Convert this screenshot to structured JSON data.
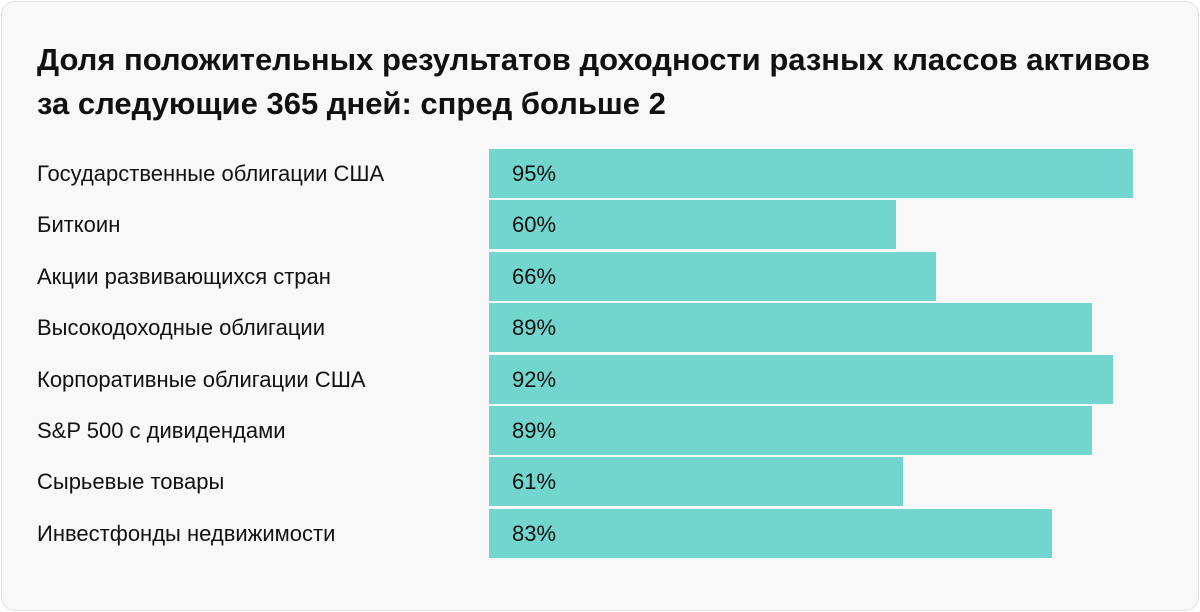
{
  "chart_data": {
    "type": "bar",
    "orientation": "horizontal",
    "title": "Доля положительных результатов доходности разных классов активов за следующие 365 дней: спред больше 2",
    "categories": [
      "Государственные облигации США",
      "Биткоин",
      "Акции развивающихся стран",
      "Высокодоходные облигации",
      "Корпоративные облигации США",
      "S&P 500 с дивидендами",
      "Сырьевые товары",
      "Инвестфонды недвижимости"
    ],
    "values": [
      95,
      60,
      66,
      89,
      92,
      89,
      61,
      83
    ],
    "value_labels": [
      "95%",
      "60%",
      "66%",
      "89%",
      "92%",
      "89%",
      "61%",
      "83%"
    ],
    "xlim": [
      0,
      100
    ],
    "grid": false,
    "bar_color": "#72d6cf"
  }
}
